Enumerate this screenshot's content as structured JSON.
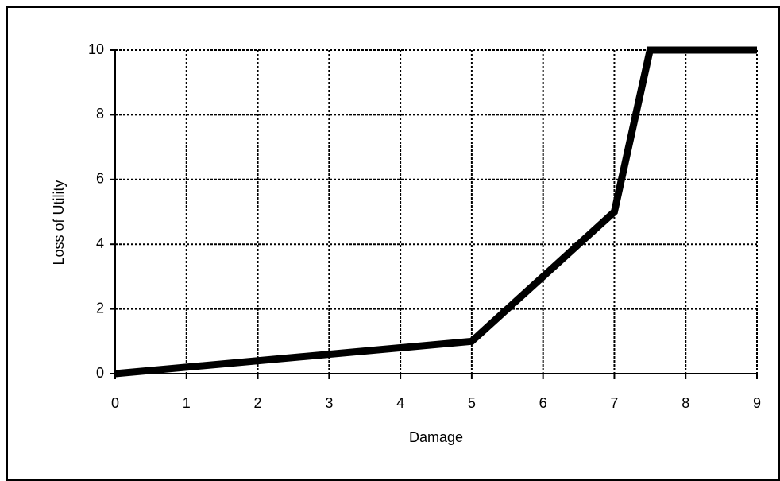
{
  "chart_data": {
    "type": "line",
    "x_label": "Damage",
    "y_label": "Loss of Utility",
    "x": [
      0,
      5,
      7,
      7.5,
      9
    ],
    "series": [
      {
        "color": "#000000",
        "values": [
          0,
          1,
          5,
          10,
          10
        ]
      }
    ],
    "xlim": [
      0,
      9
    ],
    "xticks": [
      0,
      1,
      2,
      3,
      4,
      5,
      6,
      7,
      8,
      9
    ],
    "ylim": [
      0,
      10
    ],
    "yticks": [
      0,
      2,
      4,
      6,
      8,
      10
    ],
    "grid": true
  }
}
